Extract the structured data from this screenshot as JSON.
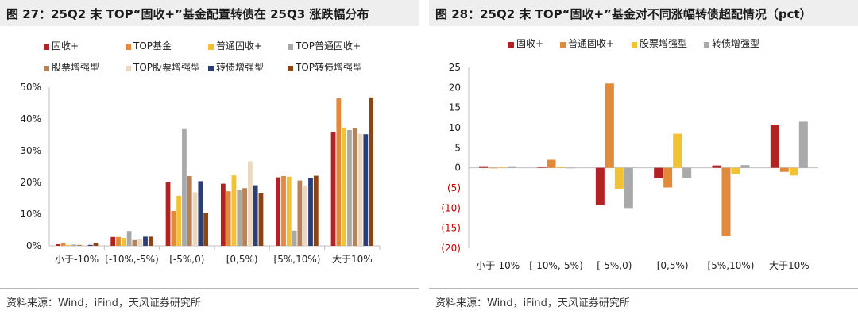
{
  "left": {
    "title": "图 27：25Q2 末 TOP“固收+”基金配置转债在 25Q3 涨跌幅分布",
    "source": "资料来源：Wind，iFind，天风证券研究所"
  },
  "right": {
    "title": "图 28：25Q2 末 TOP“固收+”基金对不同涨幅转债超配情况（pct）",
    "source": "资料来源：Wind，iFind，天风证券研究所"
  },
  "chart_data": [
    {
      "type": "bar",
      "title": "图 27：25Q2 末 TOP“固收+”基金配置转债在 25Q3 涨跌幅分布",
      "categories": [
        "小于-10%",
        "[-10%,-5%)",
        "[-5%,0)",
        "[0,5%)",
        "[5%,10%)",
        "大于10%"
      ],
      "ylim": [
        0,
        50
      ],
      "yticks": [
        0,
        10,
        20,
        30,
        40,
        50
      ],
      "ytick_labels": [
        "0%",
        "10%",
        "20%",
        "30%",
        "40%",
        "50%"
      ],
      "legend_position": "top-left",
      "grid": false,
      "series": [
        {
          "name": "固收+",
          "color": "#b22222",
          "values": [
            0.5,
            2.8,
            20.0,
            19.6,
            21.6,
            35.9
          ]
        },
        {
          "name": "TOP基金",
          "color": "#e08a3a",
          "values": [
            0.8,
            2.8,
            11.0,
            17.2,
            22.0,
            46.6
          ]
        },
        {
          "name": "普通固收+",
          "color": "#f2c232",
          "values": [
            0.3,
            2.5,
            15.8,
            22.2,
            21.8,
            37.3
          ]
        },
        {
          "name": "TOP普通固收+",
          "color": "#a9a9a9",
          "values": [
            0.4,
            4.7,
            36.8,
            17.7,
            4.8,
            36.5
          ]
        },
        {
          "name": "股票增强型",
          "color": "#b5825a",
          "values": [
            0.3,
            1.8,
            22.0,
            18.2,
            20.6,
            37.1
          ]
        },
        {
          "name": "TOP股票增强型",
          "color": "#ead8c0",
          "values": [
            0.2,
            2.1,
            16.9,
            26.6,
            19.0,
            35.3
          ]
        },
        {
          "name": "转债增强型",
          "color": "#2c3e78",
          "values": [
            0.3,
            2.9,
            20.4,
            19.1,
            21.5,
            35.2
          ]
        },
        {
          "name": "TOP转债增强型",
          "color": "#8b4513",
          "values": [
            0.8,
            2.9,
            10.5,
            16.5,
            22.1,
            46.8
          ]
        }
      ]
    },
    {
      "type": "bar",
      "title": "图 28：25Q2 末 TOP“固收+”基金对不同涨幅转债超配情况（pct）",
      "categories": [
        "小于-10%",
        "[-10%,-5%)",
        "[-5%,0)",
        "[0,5%)",
        "[5%,10%)",
        "大于10%"
      ],
      "ylim": [
        -20,
        25
      ],
      "yticks": [
        25,
        20,
        15,
        10,
        5,
        0,
        -5,
        -10,
        -15,
        -20
      ],
      "ytick_labels": [
        "25",
        "20",
        "15",
        "10",
        "5",
        "0",
        "(5)",
        "(10)",
        "(15)",
        "(20)"
      ],
      "legend_position": "top",
      "grid": false,
      "series": [
        {
          "name": "固收+",
          "color": "#b22222",
          "values": [
            0.4,
            0.1,
            -9.3,
            -2.6,
            0.6,
            10.7
          ]
        },
        {
          "name": "普通固收+",
          "color": "#e08a3a",
          "values": [
            0.0,
            2.0,
            21.0,
            -4.9,
            -17.0,
            -1.0
          ]
        },
        {
          "name": "股票增强型",
          "color": "#f2c232",
          "values": [
            0.1,
            0.3,
            -5.2,
            8.5,
            -1.6,
            -1.9
          ]
        },
        {
          "name": "转债增强型",
          "color": "#a9a9a9",
          "values": [
            0.4,
            0.0,
            -10.0,
            -2.5,
            0.7,
            11.5
          ]
        }
      ]
    }
  ]
}
